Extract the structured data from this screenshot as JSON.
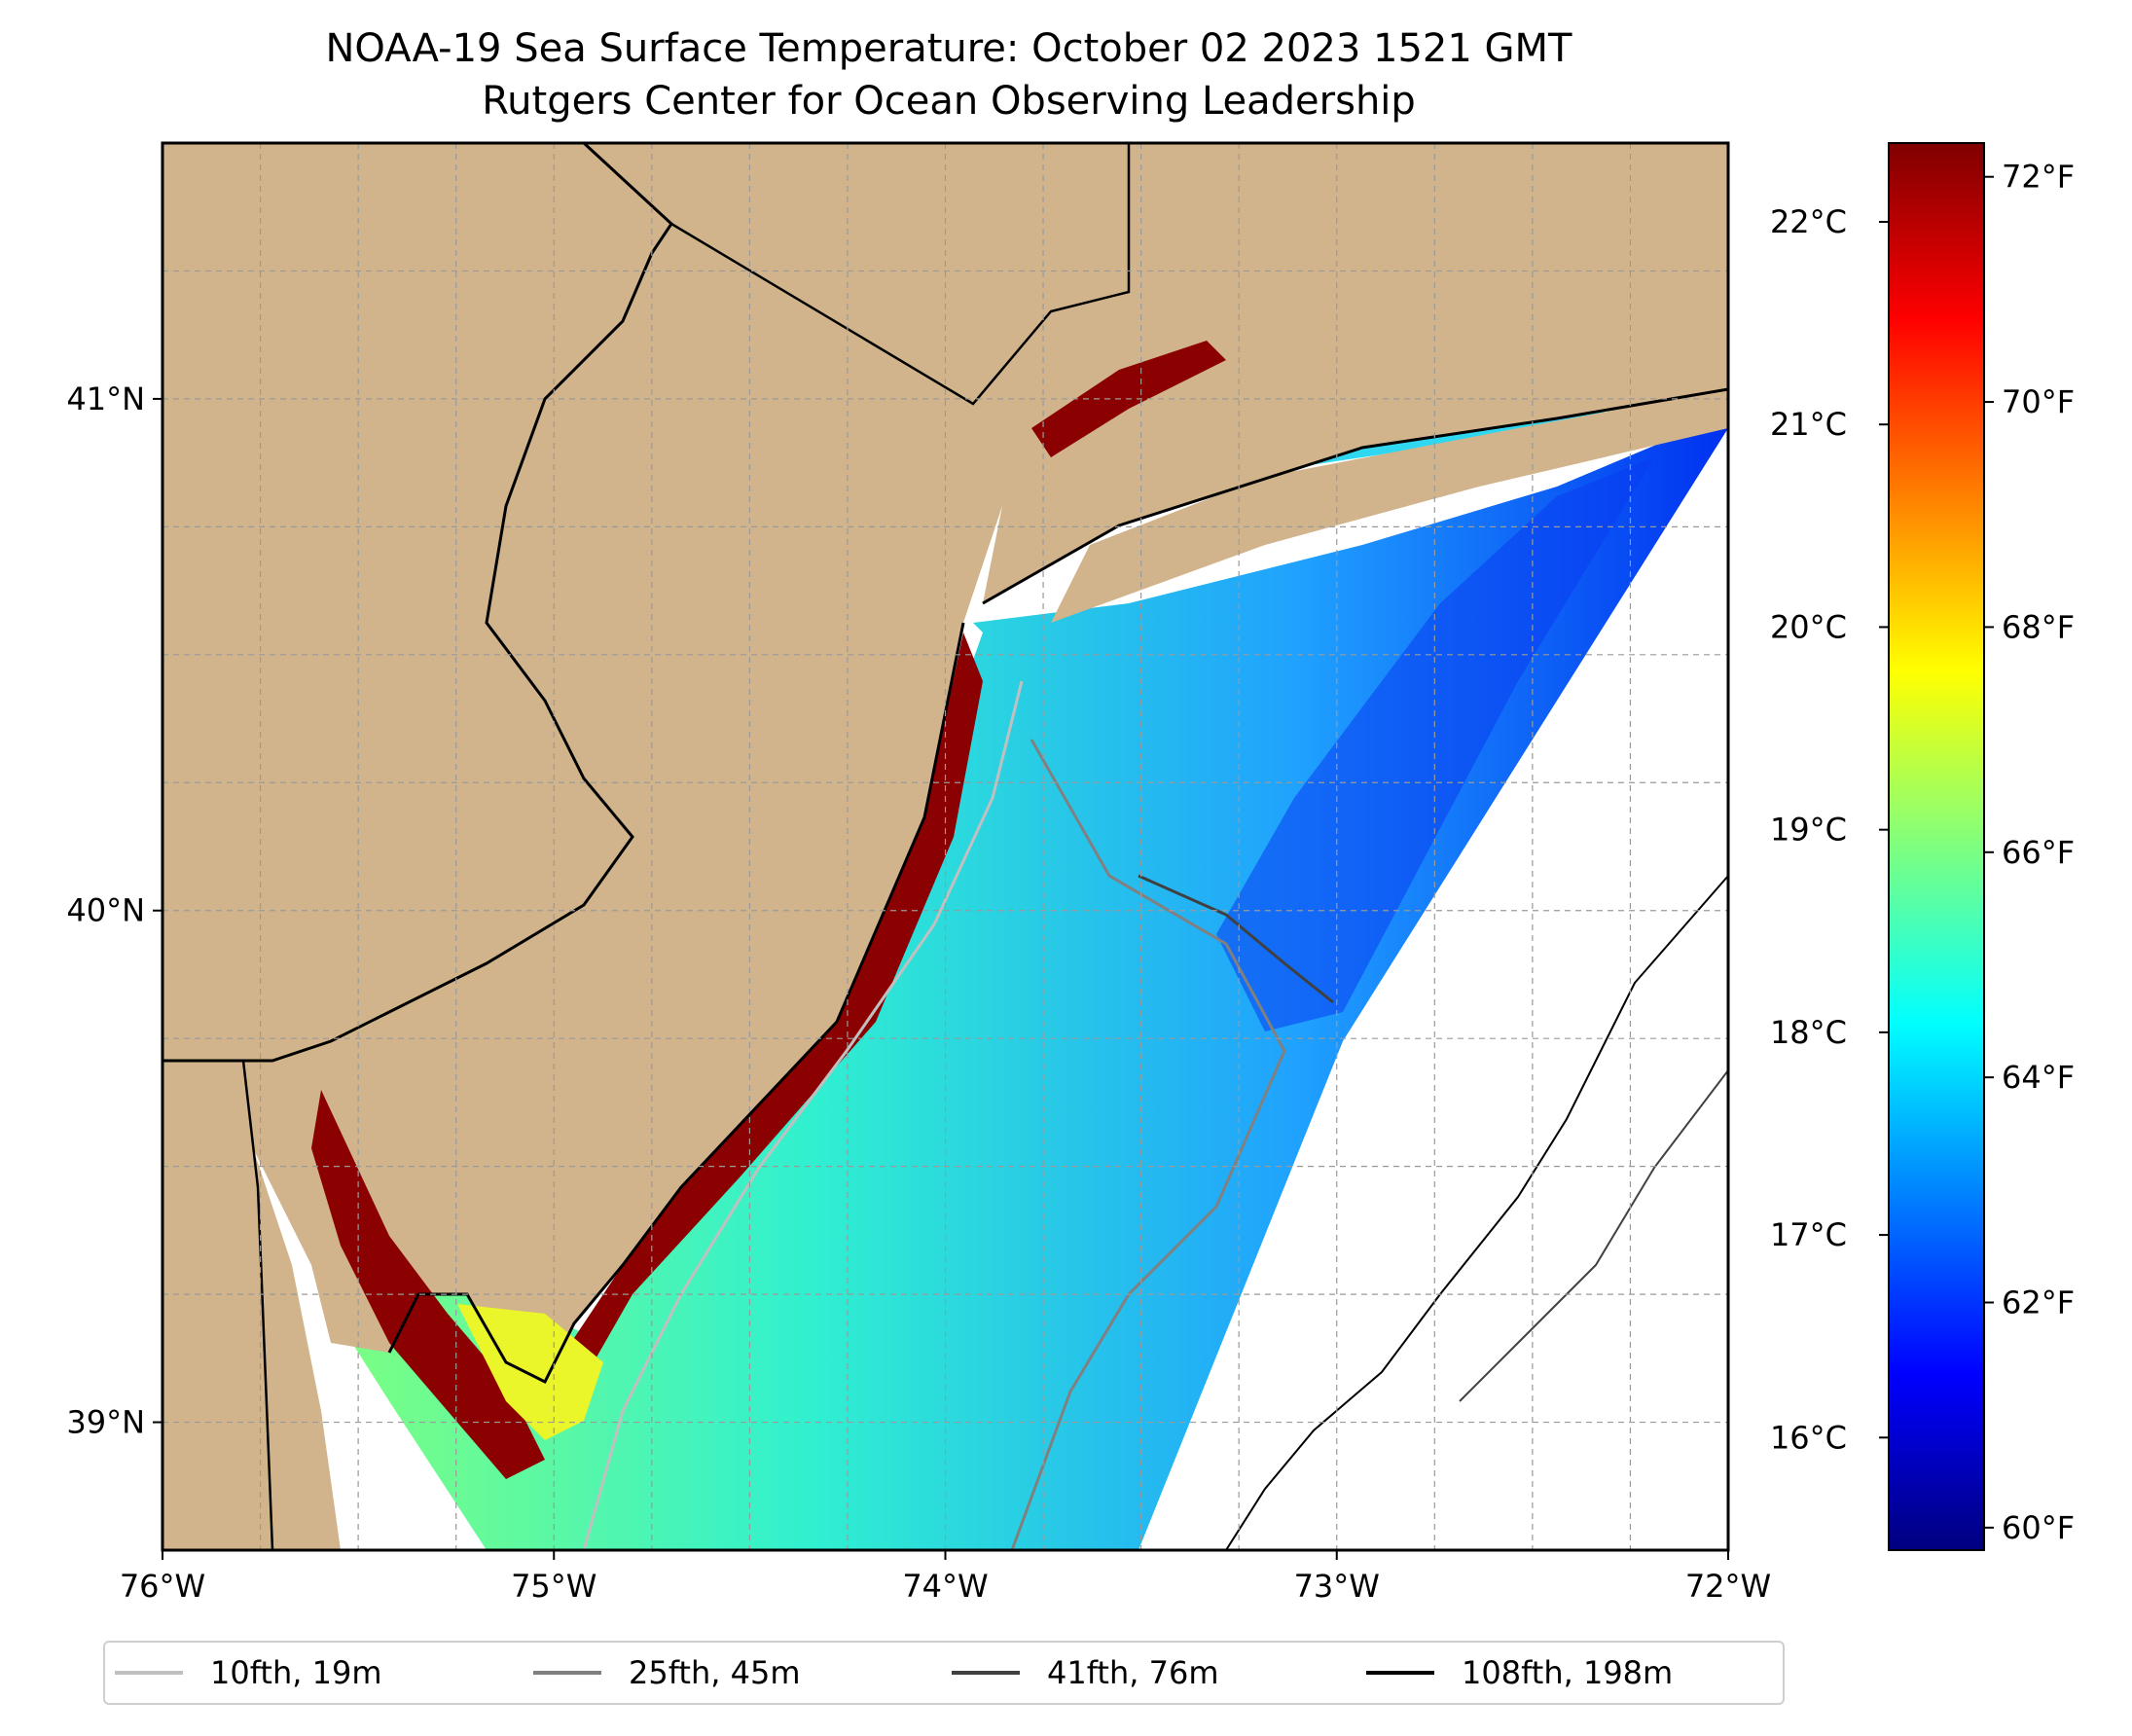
{
  "title": {
    "line1": "NOAA-19 Sea Surface Temperature: October 02 2023 1521 GMT",
    "line2": "Rutgers Center for Ocean Observing Leadership"
  },
  "map": {
    "longitude_ticks": [
      "76°W",
      "75°W",
      "74°W",
      "73°W",
      "72°W"
    ],
    "latitude_ticks": [
      "39°N",
      "40°N",
      "41°N"
    ],
    "extent": {
      "lon": [
        -76,
        -72
      ],
      "lat": [
        38.75,
        41.5
      ]
    },
    "land_color": "#D2B48C",
    "ocean_color": "#FFFFFF",
    "gridlines": true
  },
  "colorbar": {
    "fahrenheit_ticks": [
      "60°F",
      "62°F",
      "64°F",
      "66°F",
      "68°F",
      "70°F",
      "72°F"
    ],
    "celsius_ticks": [
      "16°C",
      "17°C",
      "18°C",
      "19°C",
      "20°C",
      "21°C",
      "22°C"
    ],
    "range_f": [
      59.8,
      72.3
    ],
    "colormap": "jet",
    "colors": [
      "#00007F",
      "#0000FF",
      "#007FFF",
      "#00FFFF",
      "#7FFF7F",
      "#FFFF00",
      "#FF7F00",
      "#FF0000",
      "#7F0000"
    ]
  },
  "legend": {
    "items": [
      {
        "label": "10fth, 19m",
        "color": "#C0C0C0"
      },
      {
        "label": "25fth, 45m",
        "color": "#808080"
      },
      {
        "label": "41fth, 76m",
        "color": "#404040"
      },
      {
        "label": "108fth, 198m",
        "color": "#000000"
      }
    ]
  }
}
